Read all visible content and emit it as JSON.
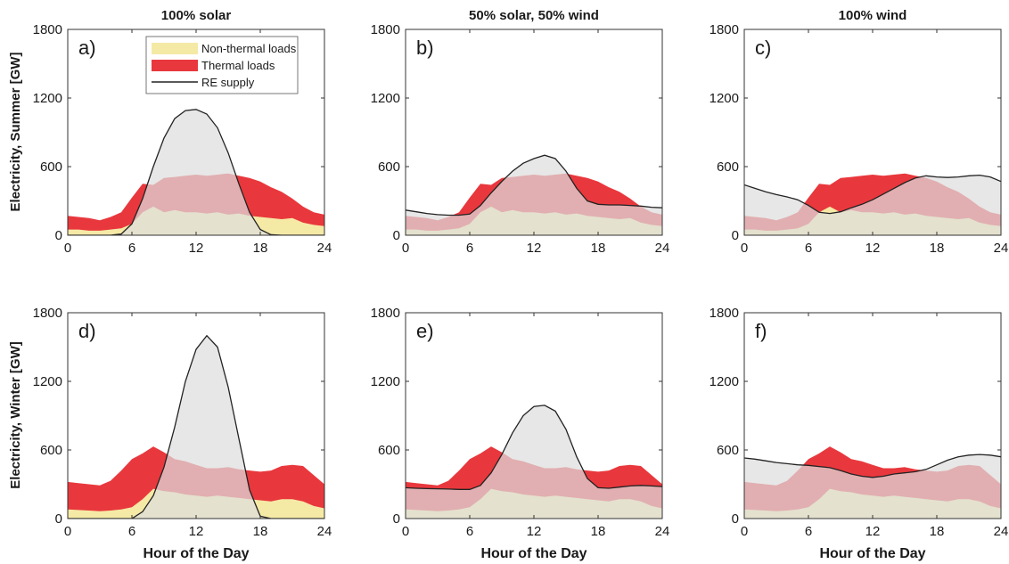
{
  "colors": {
    "nonthermal": "#f5e9a6",
    "thermal": "#e8383d",
    "supply_fill": "#dedede",
    "supply_line": "#222222"
  },
  "columns": [
    "100% solar",
    "50% solar, 50% wind",
    "100% wind"
  ],
  "row_labels": [
    "Electricity, Summer [GW]",
    "Electricity, Winter [GW]"
  ],
  "xlabel": "Hour of the Day",
  "legend": {
    "items": [
      {
        "label": "Non-thermal loads",
        "color": "#f5e9a6",
        "type": "area"
      },
      {
        "label": "Thermal loads",
        "color": "#e8383d",
        "type": "area"
      },
      {
        "label": "RE supply",
        "color": "#222222",
        "type": "line"
      }
    ]
  },
  "chart_data": [
    {
      "type": "area",
      "panel": "a)",
      "column": "100% solar",
      "row": "Summer",
      "xlim": [
        0,
        24
      ],
      "ylim": [
        0,
        1800
      ],
      "xticks": [
        0,
        6,
        12,
        18,
        24
      ],
      "yticks": [
        0,
        600,
        1200,
        1800
      ],
      "x": [
        0,
        1,
        2,
        3,
        4,
        5,
        6,
        7,
        8,
        9,
        10,
        11,
        12,
        13,
        14,
        15,
        16,
        17,
        18,
        19,
        20,
        21,
        22,
        23,
        24
      ],
      "nonthermal": [
        50,
        50,
        40,
        40,
        50,
        60,
        100,
        200,
        250,
        200,
        220,
        200,
        200,
        190,
        200,
        180,
        190,
        170,
        160,
        150,
        140,
        150,
        110,
        90,
        80
      ],
      "total_load": [
        170,
        160,
        150,
        130,
        160,
        200,
        330,
        450,
        440,
        500,
        510,
        520,
        530,
        520,
        530,
        540,
        520,
        500,
        470,
        420,
        380,
        320,
        250,
        200,
        180
      ],
      "re_supply": [
        0,
        0,
        0,
        0,
        0,
        10,
        100,
        320,
        600,
        850,
        1020,
        1090,
        1100,
        1060,
        940,
        720,
        450,
        200,
        50,
        5,
        0,
        0,
        0,
        0,
        0
      ]
    },
    {
      "type": "area",
      "panel": "b)",
      "column": "50% solar, 50% wind",
      "row": "Summer",
      "xlim": [
        0,
        24
      ],
      "ylim": [
        0,
        1800
      ],
      "xticks": [
        0,
        6,
        12,
        18,
        24
      ],
      "yticks": [
        0,
        600,
        1200,
        1800
      ],
      "x": [
        0,
        1,
        2,
        3,
        4,
        5,
        6,
        7,
        8,
        9,
        10,
        11,
        12,
        13,
        14,
        15,
        16,
        17,
        18,
        19,
        20,
        21,
        22,
        23,
        24
      ],
      "nonthermal": [
        50,
        50,
        40,
        40,
        50,
        60,
        100,
        200,
        250,
        200,
        220,
        200,
        200,
        190,
        200,
        180,
        190,
        170,
        160,
        150,
        140,
        150,
        110,
        90,
        80
      ],
      "total_load": [
        170,
        160,
        150,
        130,
        160,
        200,
        330,
        450,
        440,
        500,
        510,
        520,
        530,
        520,
        530,
        540,
        520,
        500,
        470,
        420,
        380,
        320,
        250,
        200,
        180
      ],
      "re_supply": [
        220,
        205,
        190,
        180,
        175,
        175,
        185,
        260,
        370,
        470,
        560,
        630,
        670,
        700,
        670,
        560,
        410,
        300,
        270,
        265,
        265,
        260,
        255,
        245,
        240
      ]
    },
    {
      "type": "area",
      "panel": "c)",
      "column": "100% wind",
      "row": "Summer",
      "xlim": [
        0,
        24
      ],
      "ylim": [
        0,
        1800
      ],
      "xticks": [
        0,
        6,
        12,
        18,
        24
      ],
      "yticks": [
        0,
        600,
        1200,
        1800
      ],
      "x": [
        0,
        1,
        2,
        3,
        4,
        5,
        6,
        7,
        8,
        9,
        10,
        11,
        12,
        13,
        14,
        15,
        16,
        17,
        18,
        19,
        20,
        21,
        22,
        23,
        24
      ],
      "nonthermal": [
        50,
        50,
        40,
        40,
        50,
        60,
        100,
        200,
        250,
        200,
        220,
        200,
        200,
        190,
        200,
        180,
        190,
        170,
        160,
        150,
        140,
        150,
        110,
        90,
        80
      ],
      "total_load": [
        170,
        160,
        150,
        130,
        160,
        200,
        330,
        450,
        440,
        500,
        510,
        520,
        530,
        520,
        530,
        540,
        520,
        500,
        470,
        420,
        380,
        320,
        250,
        200,
        180
      ],
      "re_supply": [
        440,
        410,
        380,
        355,
        335,
        310,
        260,
        200,
        190,
        205,
        240,
        270,
        310,
        360,
        410,
        460,
        500,
        520,
        510,
        505,
        510,
        520,
        525,
        510,
        470
      ]
    },
    {
      "type": "area",
      "panel": "d)",
      "column": "100% solar",
      "row": "Winter",
      "xlim": [
        0,
        24
      ],
      "ylim": [
        0,
        1800
      ],
      "xticks": [
        0,
        6,
        12,
        18,
        24
      ],
      "yticks": [
        0,
        600,
        1200,
        1800
      ],
      "x": [
        0,
        1,
        2,
        3,
        4,
        5,
        6,
        7,
        8,
        9,
        10,
        11,
        12,
        13,
        14,
        15,
        16,
        17,
        18,
        19,
        20,
        21,
        22,
        23,
        24
      ],
      "nonthermal": [
        80,
        75,
        70,
        65,
        70,
        80,
        100,
        170,
        260,
        240,
        230,
        210,
        200,
        190,
        200,
        190,
        180,
        170,
        160,
        150,
        170,
        170,
        150,
        110,
        90
      ],
      "total_load": [
        320,
        310,
        300,
        290,
        330,
        420,
        520,
        570,
        630,
        580,
        520,
        500,
        470,
        440,
        440,
        450,
        430,
        420,
        410,
        420,
        460,
        470,
        460,
        380,
        300
      ],
      "re_supply": [
        0,
        0,
        0,
        0,
        0,
        0,
        0,
        60,
        200,
        450,
        800,
        1200,
        1480,
        1600,
        1500,
        1150,
        700,
        250,
        20,
        0,
        0,
        0,
        0,
        0,
        0
      ]
    },
    {
      "type": "area",
      "panel": "e)",
      "column": "50% solar, 50% wind",
      "row": "Winter",
      "xlim": [
        0,
        24
      ],
      "ylim": [
        0,
        1800
      ],
      "xticks": [
        0,
        6,
        12,
        18,
        24
      ],
      "yticks": [
        0,
        600,
        1200,
        1800
      ],
      "x": [
        0,
        1,
        2,
        3,
        4,
        5,
        6,
        7,
        8,
        9,
        10,
        11,
        12,
        13,
        14,
        15,
        16,
        17,
        18,
        19,
        20,
        21,
        22,
        23,
        24
      ],
      "nonthermal": [
        80,
        75,
        70,
        65,
        70,
        80,
        100,
        170,
        260,
        240,
        230,
        210,
        200,
        190,
        200,
        190,
        180,
        170,
        160,
        150,
        170,
        170,
        150,
        110,
        90
      ],
      "total_load": [
        320,
        310,
        300,
        290,
        330,
        420,
        520,
        570,
        630,
        580,
        520,
        500,
        470,
        440,
        440,
        450,
        430,
        420,
        410,
        420,
        460,
        470,
        460,
        380,
        300
      ],
      "re_supply": [
        270,
        265,
        262,
        260,
        258,
        255,
        255,
        290,
        400,
        560,
        750,
        900,
        980,
        990,
        940,
        780,
        540,
        350,
        270,
        265,
        275,
        285,
        290,
        285,
        280
      ]
    },
    {
      "type": "area",
      "panel": "f)",
      "column": "100% wind",
      "row": "Winter",
      "xlim": [
        0,
        24
      ],
      "ylim": [
        0,
        1800
      ],
      "xticks": [
        0,
        6,
        12,
        18,
        24
      ],
      "yticks": [
        0,
        600,
        1200,
        1800
      ],
      "x": [
        0,
        1,
        2,
        3,
        4,
        5,
        6,
        7,
        8,
        9,
        10,
        11,
        12,
        13,
        14,
        15,
        16,
        17,
        18,
        19,
        20,
        21,
        22,
        23,
        24
      ],
      "nonthermal": [
        80,
        75,
        70,
        65,
        70,
        80,
        100,
        170,
        260,
        240,
        230,
        210,
        200,
        190,
        200,
        190,
        180,
        170,
        160,
        150,
        170,
        170,
        150,
        110,
        90
      ],
      "total_load": [
        320,
        310,
        300,
        290,
        330,
        420,
        520,
        570,
        630,
        580,
        520,
        500,
        470,
        440,
        440,
        450,
        430,
        420,
        410,
        420,
        460,
        470,
        460,
        380,
        300
      ],
      "re_supply": [
        530,
        520,
        505,
        490,
        480,
        470,
        465,
        455,
        445,
        420,
        390,
        370,
        360,
        370,
        390,
        400,
        410,
        430,
        470,
        510,
        540,
        555,
        560,
        555,
        540
      ]
    }
  ]
}
